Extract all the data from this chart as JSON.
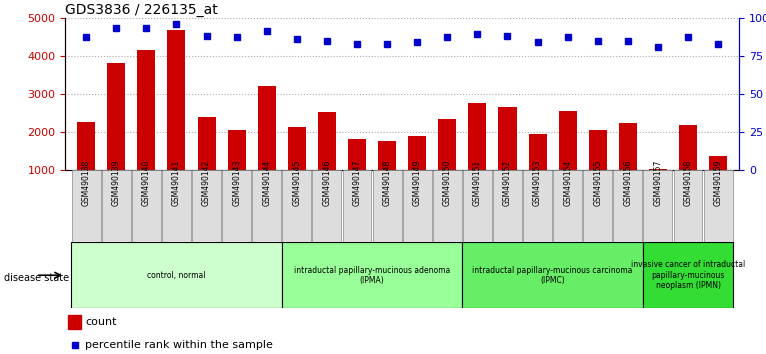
{
  "title": "GDS3836 / 226135_at",
  "samples": [
    "GSM490138",
    "GSM490139",
    "GSM490140",
    "GSM490141",
    "GSM490142",
    "GSM490143",
    "GSM490144",
    "GSM490145",
    "GSM490146",
    "GSM490147",
    "GSM490148",
    "GSM490149",
    "GSM490150",
    "GSM490151",
    "GSM490152",
    "GSM490153",
    "GSM490154",
    "GSM490155",
    "GSM490156",
    "GSM490157",
    "GSM490158",
    "GSM490159"
  ],
  "counts": [
    2250,
    3820,
    4150,
    4680,
    2380,
    2060,
    3200,
    2120,
    2520,
    1800,
    1760,
    1880,
    2340,
    2750,
    2660,
    1950,
    2560,
    2060,
    2220,
    1020,
    2170,
    1360
  ],
  "percentiles": [
    87,
    93,
    93,
    96,
    88,
    87,
    91,
    86,
    85,
    83,
    83,
    84,
    87,
    89,
    88,
    84,
    87,
    85,
    85,
    81,
    87,
    83
  ],
  "ylim_left": [
    1000,
    5000
  ],
  "ylim_right": [
    0,
    100
  ],
  "yticks_left": [
    1000,
    2000,
    3000,
    4000,
    5000
  ],
  "yticks_right": [
    0,
    25,
    50,
    75,
    100
  ],
  "bar_color": "#cc0000",
  "dot_color": "#0000cc",
  "groups": [
    {
      "label": "control, normal",
      "start": 0,
      "end": 7,
      "color": "#ccffcc"
    },
    {
      "label": "intraductal papillary-mucinous adenoma\n(IPMA)",
      "start": 7,
      "end": 13,
      "color": "#99ff99"
    },
    {
      "label": "intraductal papillary-mucinous carcinoma\n(IPMC)",
      "start": 13,
      "end": 19,
      "color": "#66ee66"
    },
    {
      "label": "invasive cancer of intraductal\npapillary-mucinous\nneoplasm (IPMN)",
      "start": 19,
      "end": 22,
      "color": "#33dd33"
    }
  ],
  "legend_count_label": "count",
  "legend_pct_label": "percentile rank within the sample",
  "disease_state_label": "disease state",
  "background_color": "#ffffff",
  "grid_color": "#aaaaaa",
  "title_fontsize": 10,
  "axis_label_color_left": "#cc0000",
  "axis_label_color_right": "#0000cc",
  "tick_box_color": "#dddddd",
  "tick_box_edge_color": "#888888"
}
